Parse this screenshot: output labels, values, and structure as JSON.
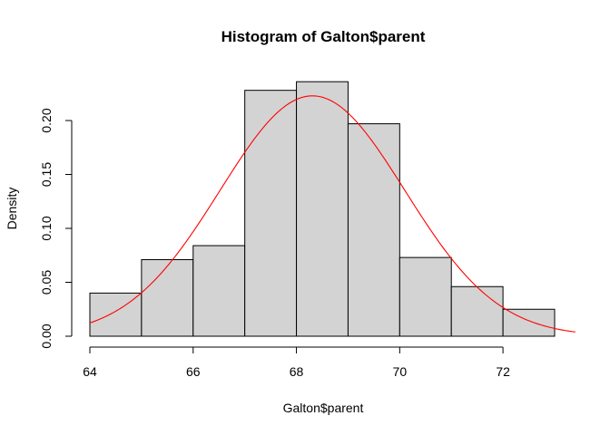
{
  "chart_data": {
    "type": "bar",
    "title": "Histogram of Galton$parent",
    "xlabel": "Galton$parent",
    "ylabel": "Density",
    "bins": [
      {
        "from": 64,
        "to": 65,
        "density": 0.04
      },
      {
        "from": 65,
        "to": 66,
        "density": 0.071
      },
      {
        "from": 66,
        "to": 67,
        "density": 0.084
      },
      {
        "from": 67,
        "to": 68,
        "density": 0.228
      },
      {
        "from": 68,
        "to": 69,
        "density": 0.236
      },
      {
        "from": 69,
        "to": 70,
        "density": 0.197
      },
      {
        "from": 70,
        "to": 71,
        "density": 0.073
      },
      {
        "from": 71,
        "to": 72,
        "density": 0.046
      },
      {
        "from": 72,
        "to": 73,
        "density": 0.025
      }
    ],
    "x_ticks": [
      "64",
      "66",
      "68",
      "70",
      "72"
    ],
    "y_ticks": [
      "0.00",
      "0.05",
      "0.10",
      "0.15",
      "0.20"
    ],
    "xlim": [
      64,
      73.4
    ],
    "ylim": [
      0,
      0.24
    ],
    "overlay_curve": {
      "type": "normal_density",
      "mean": 68.31,
      "sd": 1.79,
      "x_range": [
        64,
        73.4
      ],
      "color": "#ff0000"
    },
    "bar_color": "#d3d3d3",
    "grid": false
  }
}
